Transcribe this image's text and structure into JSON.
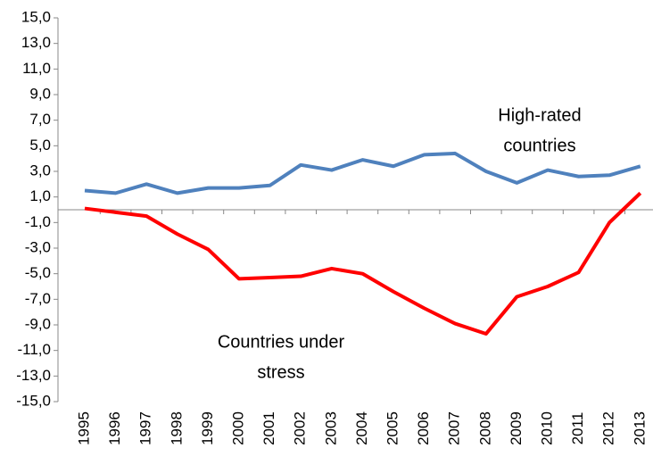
{
  "chart_data": {
    "type": "line",
    "categories": [
      "1995",
      "1996",
      "1997",
      "1998",
      "1999",
      "2000",
      "2001",
      "2002",
      "2003",
      "2004",
      "2005",
      "2006",
      "2007",
      "2008",
      "2009",
      "2010",
      "2011",
      "2012",
      "2013"
    ],
    "series": [
      {
        "color": "#4f81bd",
        "values": [
          1.5,
          1.3,
          2.0,
          1.3,
          1.7,
          1.7,
          1.9,
          3.5,
          3.1,
          3.9,
          3.4,
          4.3,
          4.4,
          3.0,
          2.1,
          3.1,
          2.6,
          2.7,
          3.4
        ]
      },
      {
        "color": "#ff0000",
        "values": [
          0.1,
          -0.2,
          -0.5,
          -1.9,
          -3.1,
          -5.4,
          -5.3,
          -5.2,
          -4.6,
          -5.0,
          -6.4,
          -7.7,
          -8.9,
          -9.7,
          -6.8,
          -6.0,
          -4.9,
          -1.0,
          1.3
        ]
      }
    ],
    "annotations": [
      {
        "lines": [
          "High-rated",
          "countries"
        ]
      },
      {
        "lines": [
          "Countries under",
          "stress"
        ]
      }
    ],
    "ylim": [
      -15,
      15
    ],
    "yticks": [
      {
        "value": 15,
        "label": "15,0"
      },
      {
        "value": 13,
        "label": "13,0"
      },
      {
        "value": 11,
        "label": "11,0"
      },
      {
        "value": 9,
        "label": "9,0"
      },
      {
        "value": 7,
        "label": "7,0"
      },
      {
        "value": 5,
        "label": "5,0"
      },
      {
        "value": 3,
        "label": "3,0"
      },
      {
        "value": 1,
        "label": "1,0"
      },
      {
        "value": -1,
        "label": "-1,0"
      },
      {
        "value": -3,
        "label": "-3,0"
      },
      {
        "value": -5,
        "label": "-5,0"
      },
      {
        "value": -7,
        "label": "-7,0"
      },
      {
        "value": -9,
        "label": "-9,0"
      },
      {
        "value": -11,
        "label": "-11,0"
      },
      {
        "value": -13,
        "label": "-13,0"
      },
      {
        "value": -15,
        "label": "-15,0"
      }
    ]
  }
}
